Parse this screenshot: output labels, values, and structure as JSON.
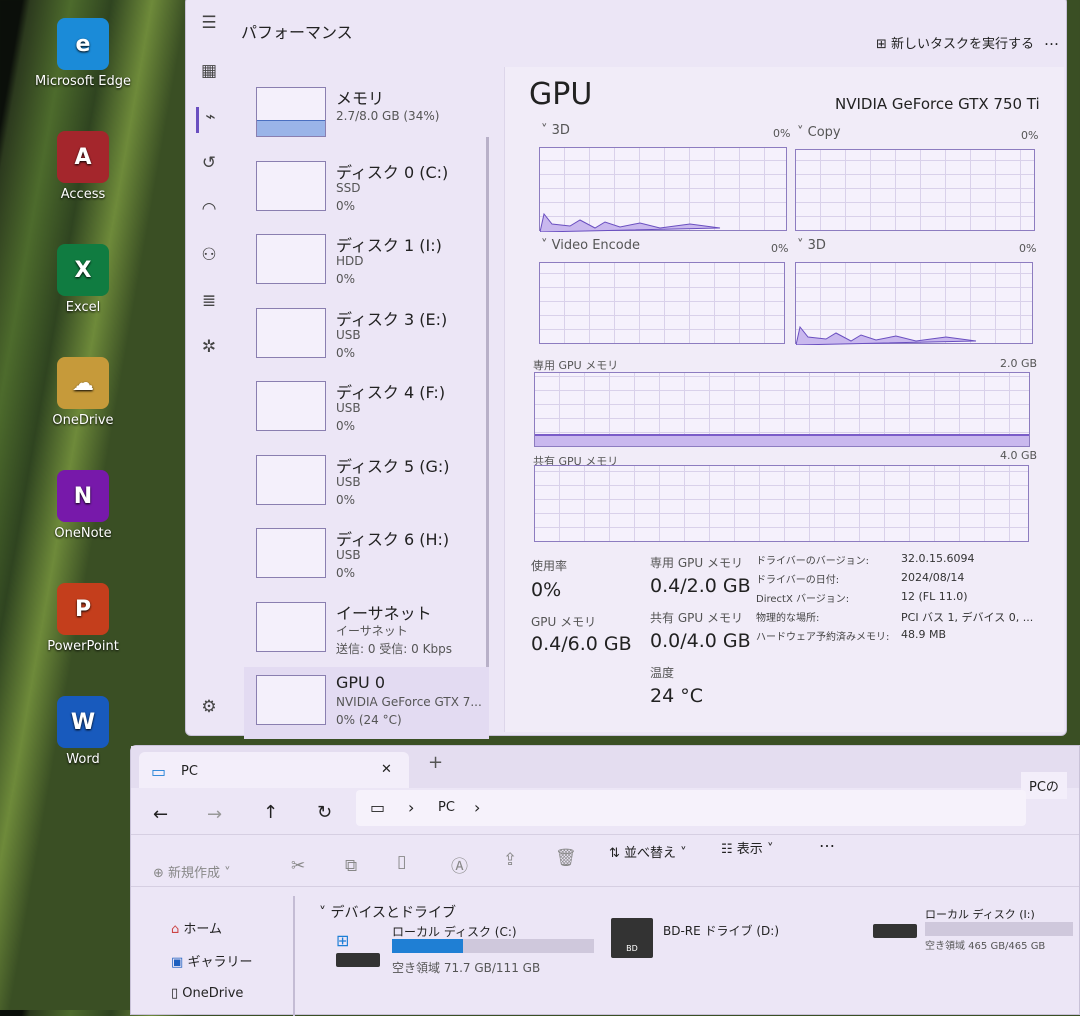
{
  "desktop": {
    "icons": [
      {
        "label": "Microsoft Edge",
        "glyph": "e",
        "color": "#1b8bd8"
      },
      {
        "label": "Access",
        "glyph": "A",
        "color": "#a4262c"
      },
      {
        "label": "Excel",
        "glyph": "X",
        "color": "#107c41"
      },
      {
        "label": "OneDrive",
        "glyph": "☁",
        "color": "#c69a3a"
      },
      {
        "label": "OneNote",
        "glyph": "N",
        "color": "#7719aa"
      },
      {
        "label": "PowerPoint",
        "glyph": "P",
        "color": "#c43e1c"
      },
      {
        "label": "Word",
        "glyph": "W",
        "color": "#185abd"
      }
    ]
  },
  "taskmanager": {
    "title": "パフォーマンス",
    "run_task": "新しいタスクを実行する",
    "more": "…",
    "items": [
      {
        "name": "メモリ",
        "sub1": "2.7/8.0 GB (34%)",
        "sub2": ""
      },
      {
        "name": "ディスク 0 (C:)",
        "sub1": "SSD",
        "sub2": "0%"
      },
      {
        "name": "ディスク 1 (I:)",
        "sub1": "HDD",
        "sub2": "0%"
      },
      {
        "name": "ディスク 3 (E:)",
        "sub1": "USB",
        "sub2": "0%"
      },
      {
        "name": "ディスク 4 (F:)",
        "sub1": "USB",
        "sub2": "0%"
      },
      {
        "name": "ディスク 5 (G:)",
        "sub1": "USB",
        "sub2": "0%"
      },
      {
        "name": "ディスク 6 (H:)",
        "sub1": "USB",
        "sub2": "0%"
      },
      {
        "name": "イーサネット",
        "sub1": "イーサネット",
        "sub2": "送信: 0 受信: 0 Kbps"
      },
      {
        "name": "GPU 0",
        "sub1": "NVIDIA GeForce GTX 7...",
        "sub2": "0% (24 °C)"
      }
    ],
    "memory_usage_percent": 34,
    "gpu": {
      "heading": "GPU",
      "model": "NVIDIA GeForce GTX 750 Ti",
      "graphs": [
        {
          "label": "3D",
          "pct": "0%"
        },
        {
          "label": "Copy",
          "pct": "0%"
        },
        {
          "label": "Video Encode",
          "pct": "0%"
        },
        {
          "label": "3D",
          "pct": "0%"
        }
      ],
      "dedicated_label": "専用 GPU メモリ",
      "dedicated_max": "2.0 GB",
      "shared_label": "共有 GPU メモリ",
      "shared_max": "4.0 GB",
      "stats": {
        "usage_label": "使用率",
        "usage": "0%",
        "gpumem_label": "GPU メモリ",
        "gpumem": "0.4/6.0 GB",
        "ded_label": "専用 GPU メモリ",
        "ded": "0.4/2.0 GB",
        "sh_label": "共有 GPU メモリ",
        "sh": "0.0/4.0 GB",
        "temp_label": "温度",
        "temp": "24 °C"
      },
      "details": [
        {
          "k": "ドライバーのバージョン:",
          "v": "32.0.15.6094"
        },
        {
          "k": "ドライバーの日付:",
          "v": "2024/08/14"
        },
        {
          "k": "DirectX バージョン:",
          "v": "12 (FL 11.0)"
        },
        {
          "k": "物理的な場所:",
          "v": "PCI バス 1, デバイス 0, ..."
        },
        {
          "k": "ハードウェア予約済みメモリ:",
          "v": "48.9 MB"
        }
      ]
    }
  },
  "explorer": {
    "tab": "PC",
    "close": "✕",
    "newtab": "+",
    "path": "PC",
    "right_tab": "PCの",
    "new": "新規作成",
    "sort": "並べ替え",
    "view": "表示",
    "more": "…",
    "nav": [
      "ホーム",
      "ギャラリー",
      "OneDrive"
    ],
    "section": "デバイスとドライブ",
    "drives": [
      {
        "name": "ローカル ディスク (C:)",
        "free": "空き領域 71.7 GB/111 GB",
        "used_fraction": 0.35
      },
      {
        "name": "BD-RE ドライブ (D:)",
        "free": ""
      },
      {
        "name": "ローカル ディスク (I:)",
        "free": "空き領域 465 GB/465 GB",
        "used_fraction": 0.0
      }
    ]
  }
}
